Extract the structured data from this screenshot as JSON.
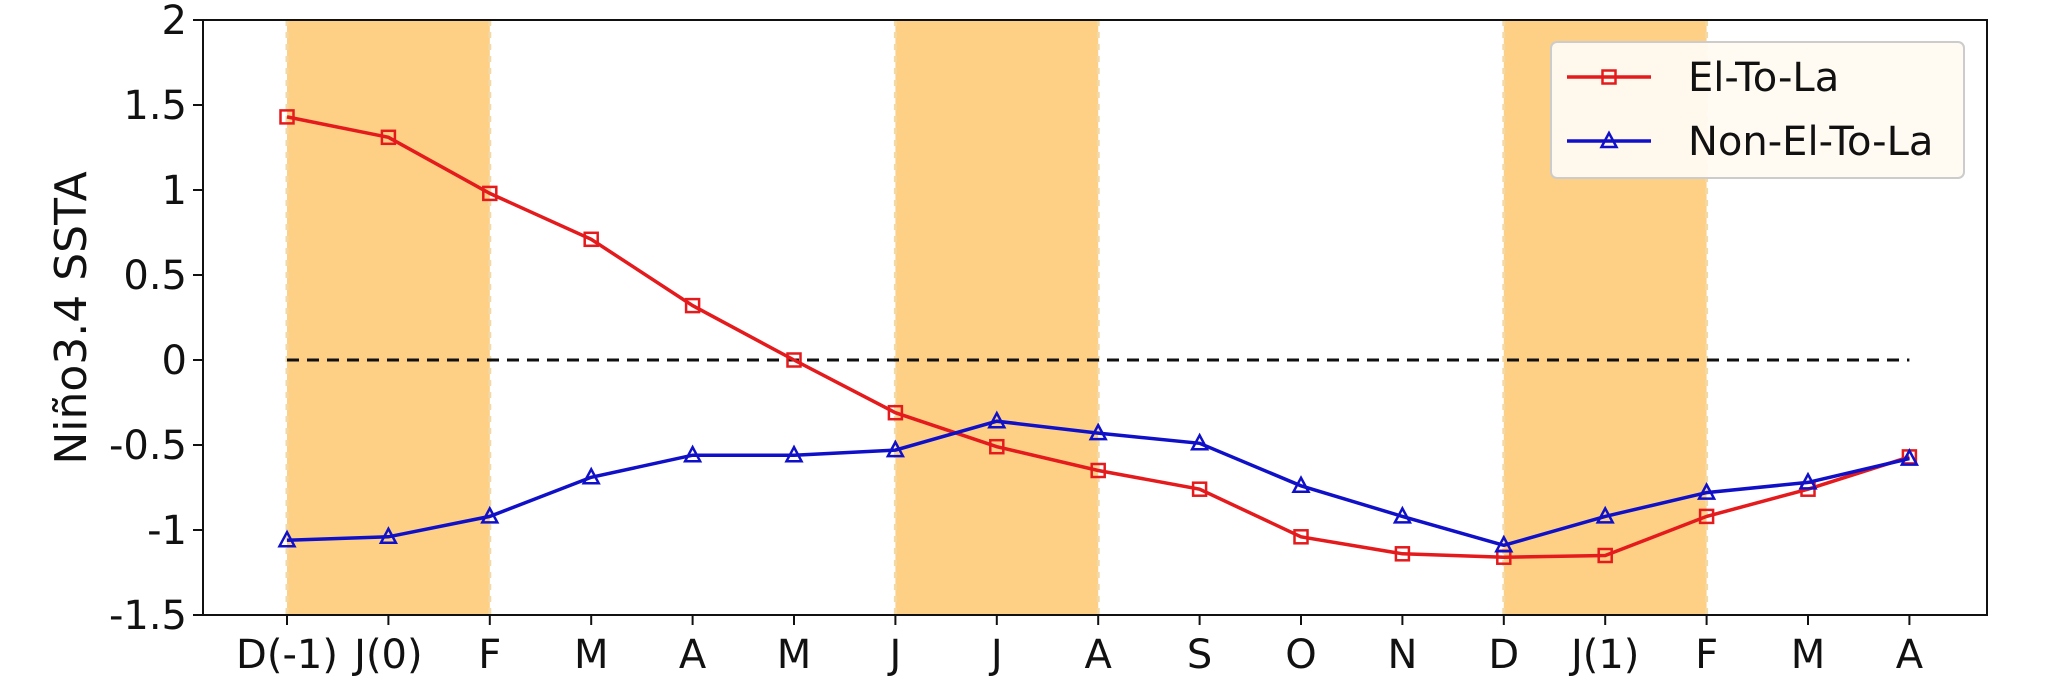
{
  "chart_data": {
    "type": "line",
    "ylabel": "Niño3.4 SSTA",
    "xlabel": "",
    "categories": [
      "D(-1)",
      "J(0)",
      "F",
      "M",
      "A",
      "M",
      "J",
      "J",
      "A",
      "S",
      "O",
      "N",
      "D",
      "J(1)",
      "F",
      "M",
      "A"
    ],
    "ylim": [
      -1.5,
      2
    ],
    "yticks": [
      "-1.5",
      "-1",
      "-0.5",
      "0",
      "0.5",
      "1",
      "1.5",
      "2"
    ],
    "ytick_values": [
      -1.5,
      -1,
      -0.5,
      0,
      0.5,
      1,
      1.5,
      2
    ],
    "shaded_category_ranges": [
      [
        0,
        2
      ],
      [
        6,
        8
      ],
      [
        12,
        14
      ]
    ],
    "shade_color": "#fdd085",
    "zero_line": 0,
    "legend_position": "upper right",
    "series": [
      {
        "name": "El-To-La",
        "color": "#e41a1c",
        "marker": "square",
        "values": [
          1.43,
          1.31,
          0.98,
          0.71,
          0.32,
          0.0,
          -0.31,
          -0.51,
          -0.65,
          -0.76,
          -1.04,
          -1.14,
          -1.16,
          -1.15,
          -0.92,
          -0.76,
          -0.57
        ]
      },
      {
        "name": "Non-El-To-La",
        "color": "#1010c8",
        "marker": "triangle",
        "values": [
          -1.06,
          -1.04,
          -0.92,
          -0.69,
          -0.56,
          -0.56,
          -0.53,
          -0.36,
          -0.43,
          -0.49,
          -0.74,
          -0.92,
          -1.09,
          -0.92,
          -0.78,
          -0.72,
          -0.58
        ]
      }
    ]
  }
}
